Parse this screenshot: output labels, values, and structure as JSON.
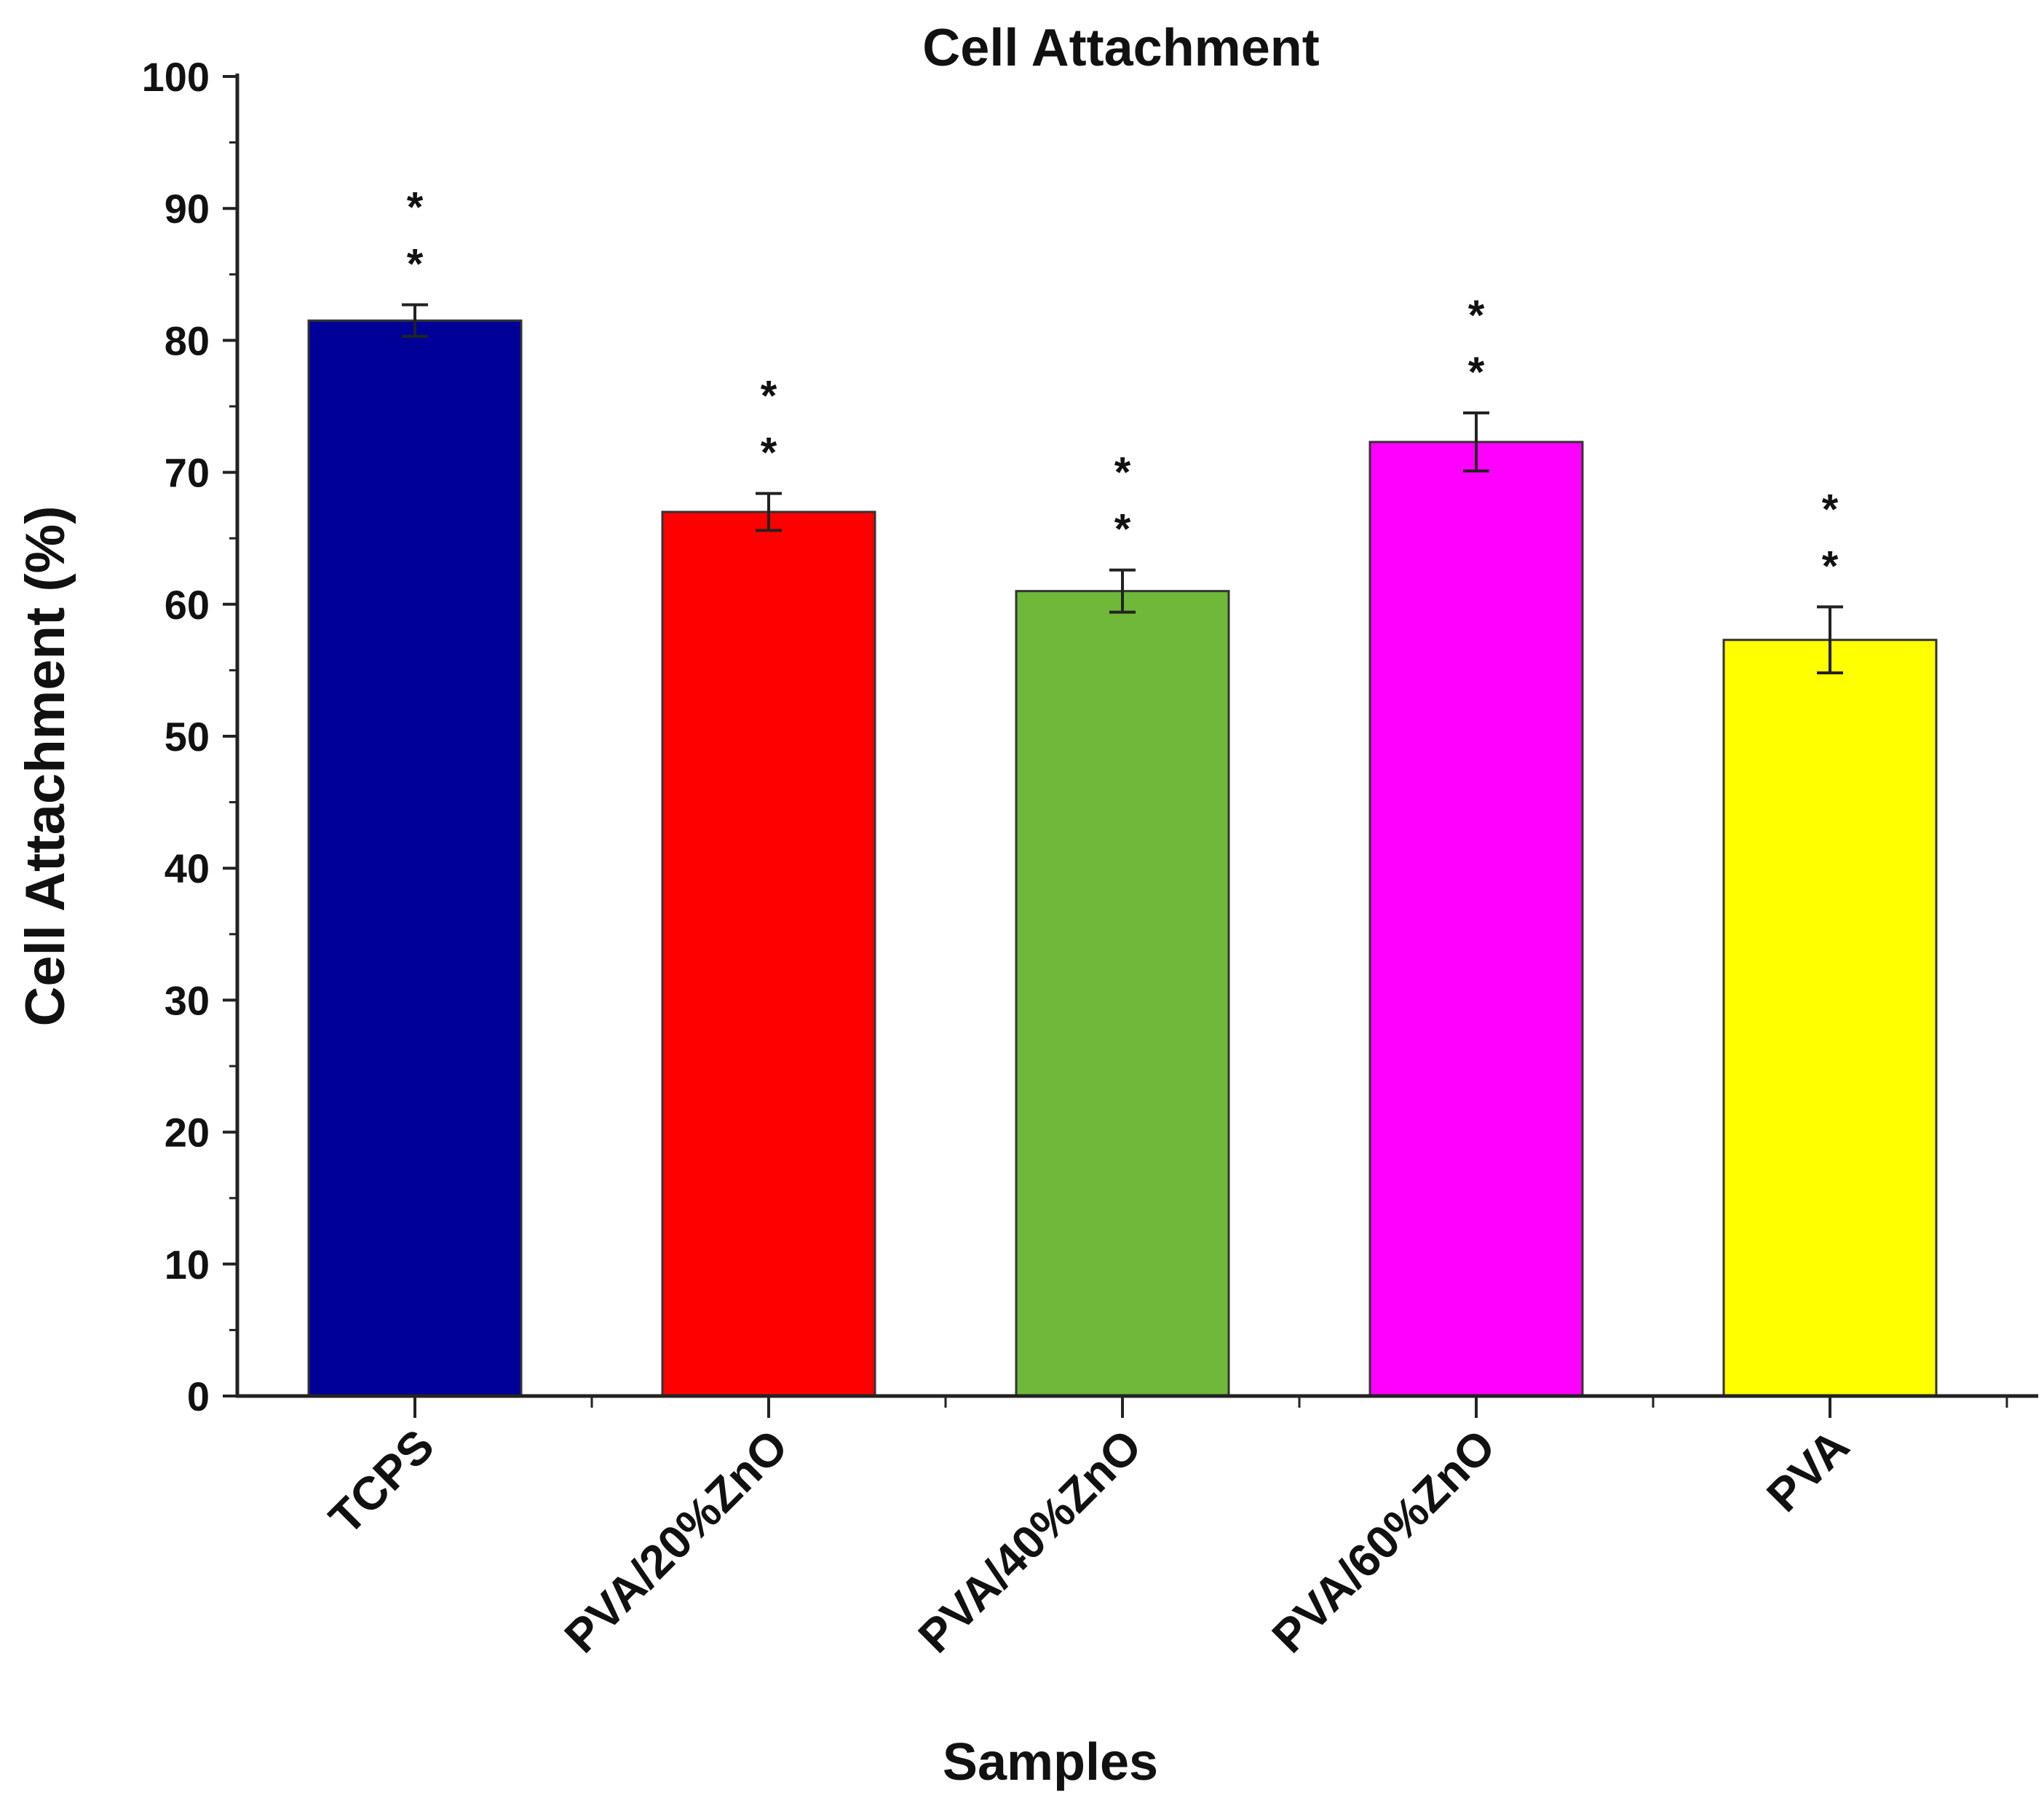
{
  "chart_data": {
    "type": "bar",
    "title": "Cell Attachment",
    "xlabel": "Samples",
    "ylabel": "Cell Attachment (%)",
    "ylim": [
      0,
      100
    ],
    "yticks": [
      "0",
      "10",
      "20",
      "30",
      "40",
      "50",
      "60",
      "70",
      "80",
      "90",
      "100"
    ],
    "categories": [
      "TCPS",
      "PVA/20%ZnO",
      "PVA/40%ZnO",
      "PVA/60%ZnO",
      "PVA"
    ],
    "values": [
      81.5,
      67.0,
      61.0,
      72.3,
      57.3
    ],
    "errors": [
      1.2,
      1.4,
      1.6,
      2.2,
      2.5
    ],
    "colors": [
      "#000099",
      "#ff0000",
      "#6fb83a",
      "#ff00ff",
      "#ffff00"
    ],
    "annotation": "*",
    "significance": [
      "**",
      "**",
      "**",
      "**",
      "**"
    ],
    "grid": false,
    "legend": "none"
  }
}
